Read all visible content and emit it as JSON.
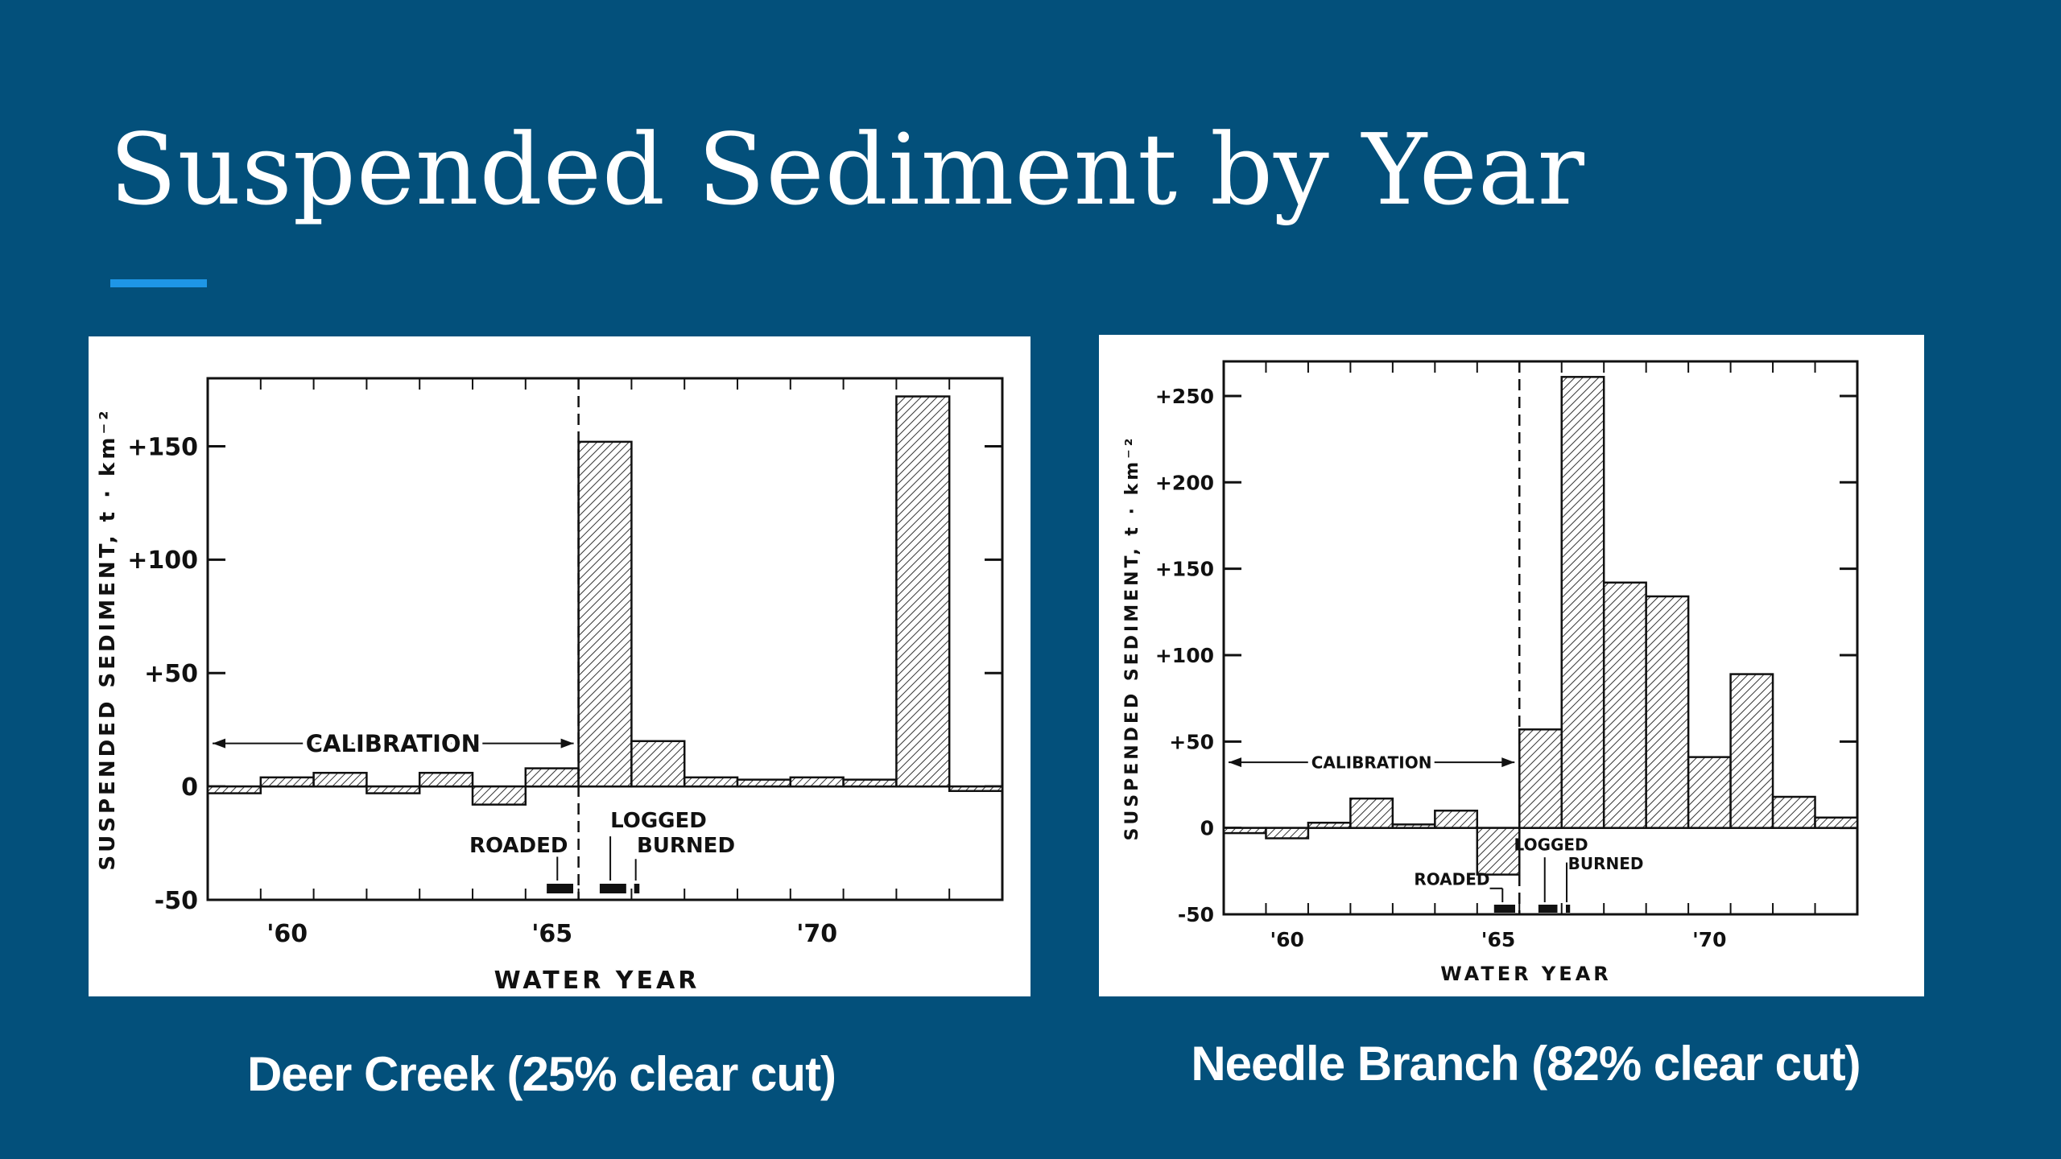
{
  "slide": {
    "title": "Suspended Sediment by Year",
    "accent_color": "#1e96e6",
    "background_color": "#03507b"
  },
  "chart_data": [
    {
      "type": "bar",
      "caption": "Deer Creek (25% clear cut)",
      "xlabel": "WATER YEAR",
      "ylabel": "SUSPENDED SEDIMENT, t · km⁻²",
      "ylim": [
        -50,
        180
      ],
      "xlim": [
        1958.5,
        1973.5
      ],
      "yticks": [
        {
          "v": -50,
          "label": "-50"
        },
        {
          "v": 0,
          "label": "0"
        },
        {
          "v": 50,
          "label": "+50"
        },
        {
          "v": 100,
          "label": "+100"
        },
        {
          "v": 150,
          "label": "+150"
        }
      ],
      "xticks": [
        {
          "v": 1960,
          "label": "'60"
        },
        {
          "v": 1965,
          "label": "'65"
        },
        {
          "v": 1970,
          "label": "'70"
        }
      ],
      "x": [
        1959,
        1960,
        1961,
        1962,
        1963,
        1964,
        1965,
        1966,
        1967,
        1968,
        1969,
        1970,
        1971,
        1972,
        1973
      ],
      "values": [
        -3,
        4,
        6,
        -3,
        6,
        -8,
        8,
        152,
        20,
        4,
        3,
        4,
        3,
        172,
        -2
      ],
      "calibration_end": 1965.5,
      "annotations": {
        "calibration": "CALIBRATION",
        "roaded": "ROADED",
        "logged": "LOGGED",
        "burned": "BURNED"
      },
      "events": {
        "roaded": [
          1964.9,
          1965.4
        ],
        "logged": [
          1965.9,
          1966.4
        ],
        "burned": [
          1966.55,
          1966.65
        ]
      }
    },
    {
      "type": "bar",
      "caption": "Needle Branch (82% clear cut)",
      "xlabel": "WATER YEAR",
      "ylabel": "SUSPENDED SEDIMENT, t · km⁻²",
      "ylim": [
        -50,
        270
      ],
      "xlim": [
        1958.5,
        1973.5
      ],
      "yticks": [
        {
          "v": -50,
          "label": "-50"
        },
        {
          "v": 0,
          "label": "0"
        },
        {
          "v": 50,
          "label": "+50"
        },
        {
          "v": 100,
          "label": "+100"
        },
        {
          "v": 150,
          "label": "+150"
        },
        {
          "v": 200,
          "label": "+200"
        },
        {
          "v": 250,
          "label": "+250"
        }
      ],
      "xticks": [
        {
          "v": 1960,
          "label": "'60"
        },
        {
          "v": 1965,
          "label": "'65"
        },
        {
          "v": 1970,
          "label": "'70"
        }
      ],
      "x": [
        1959,
        1960,
        1961,
        1962,
        1963,
        1964,
        1965,
        1966,
        1967,
        1968,
        1969,
        1970,
        1971,
        1972,
        1973
      ],
      "values": [
        -3,
        -6,
        3,
        17,
        2,
        10,
        -27,
        57,
        261,
        142,
        134,
        41,
        89,
        18,
        6
      ],
      "calibration_end": 1965.5,
      "annotations": {
        "calibration": "CALIBRATION",
        "roaded": "ROADED",
        "logged": "LOGGED",
        "burned": "BURNED"
      },
      "events": {
        "roaded": [
          1964.9,
          1965.4
        ],
        "logged": [
          1965.95,
          1966.4
        ],
        "burned": [
          1966.6,
          1966.7
        ]
      }
    }
  ]
}
